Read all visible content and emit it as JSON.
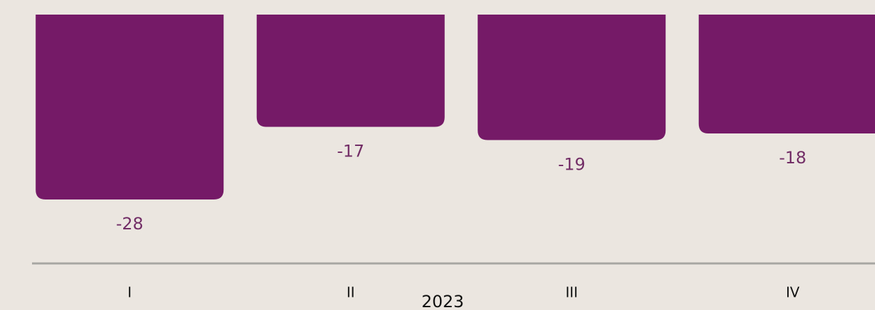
{
  "chart_data": {
    "type": "bar",
    "categories": [
      "I",
      "II",
      "III",
      "IV"
    ],
    "values": [
      -28,
      -17,
      -19,
      -18
    ],
    "color": "#751a67",
    "x_label": "2023",
    "ylim": [
      -35,
      0
    ]
  }
}
